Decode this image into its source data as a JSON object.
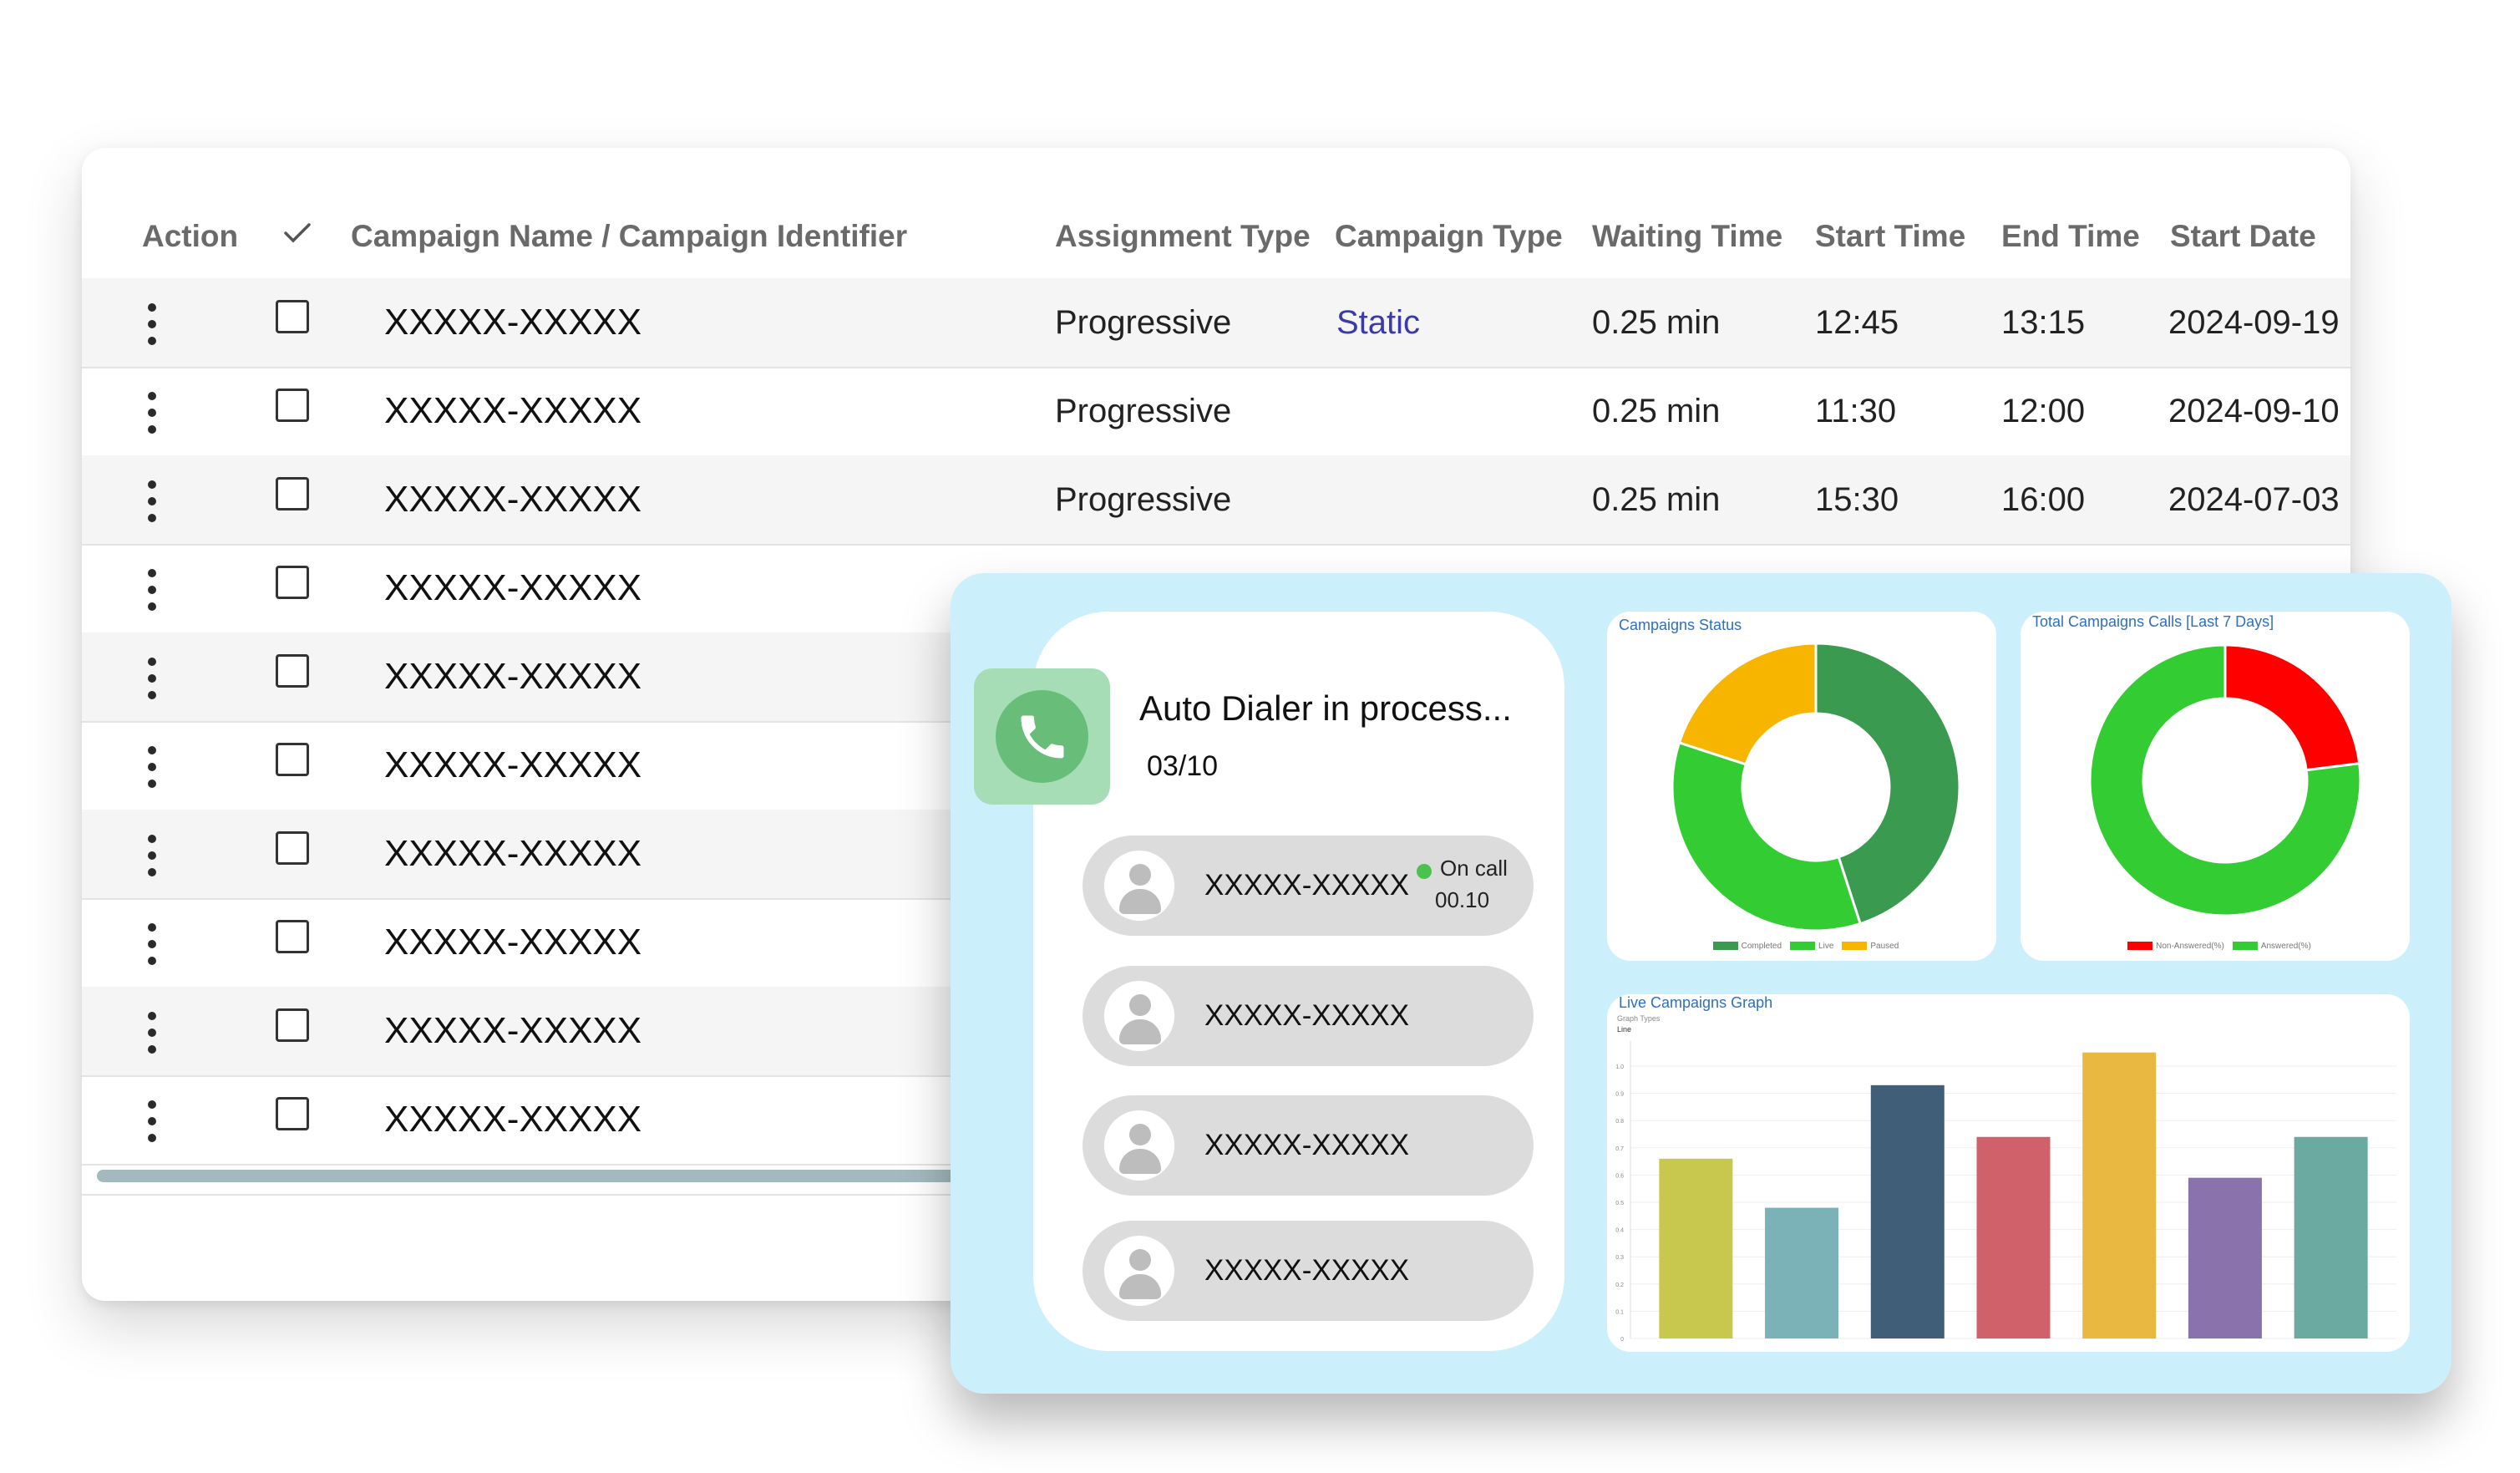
{
  "table": {
    "headers": {
      "action": "Action",
      "check_icon": "check-icon",
      "campaign": "Campaign Name / Campaign Identifier",
      "assignment": "Assignment Type",
      "campaign_type": "Campaign Type",
      "waiting": "Waiting Time",
      "start_time": "Start Time",
      "end_time": "End Time",
      "start_date": "Start Date"
    },
    "rows": [
      {
        "name": "XXXXX-XXXXX",
        "assignment": "Progressive",
        "campaign_type": "Static",
        "waiting": "0.25 min",
        "start_time": "12:45",
        "end_time": "13:15",
        "start_date": "2024-09-19"
      },
      {
        "name": "XXXXX-XXXXX",
        "assignment": "Progressive",
        "campaign_type": "",
        "waiting": "0.25 min",
        "start_time": "11:30",
        "end_time": "12:00",
        "start_date": "2024-09-10"
      },
      {
        "name": "XXXXX-XXXXX",
        "assignment": "Progressive",
        "campaign_type": "",
        "waiting": "0.25 min",
        "start_time": "15:30",
        "end_time": "16:00",
        "start_date": "2024-07-03"
      },
      {
        "name": "XXXXX-XXXXX"
      },
      {
        "name": "XXXXX-XXXXX"
      },
      {
        "name": "XXXXX-XXXXX"
      },
      {
        "name": "XXXXX-XXXXX"
      },
      {
        "name": "XXXXX-XXXXX"
      },
      {
        "name": "XXXXX-XXXXX"
      },
      {
        "name": "XXXXX-XXXXX"
      }
    ]
  },
  "dialer": {
    "title": "Auto Dialer in process...",
    "count": "03/10",
    "icon": "phone-icon",
    "calls": [
      {
        "name": "XXXXX-XXXXX",
        "status": "On call",
        "time": "00.10"
      },
      {
        "name": "XXXXX-XXXXX"
      },
      {
        "name": "XXXXX-XXXXX"
      },
      {
        "name": "XXXXX-XXXXX"
      }
    ]
  },
  "colors": {
    "panel_bg": "#cbeffb",
    "accent_link": "#3a3aa8",
    "completed": "#3a9a50",
    "live": "#33cc33",
    "paused": "#f7b500",
    "non_answered": "#ff0000",
    "answered": "#33cc33"
  },
  "chart_data": [
    {
      "type": "pie",
      "title": "Campaigns Status",
      "labels": [
        "Completed",
        "Live",
        "Paused"
      ],
      "values": [
        45,
        35,
        20
      ],
      "colors": [
        "#3a9a50",
        "#33cc33",
        "#f7b500"
      ],
      "legend": "bottom"
    },
    {
      "type": "pie",
      "title": "Total Campaigns Calls [Last 7 Days]",
      "labels": [
        "Non-Answered(%)",
        "Answered(%)"
      ],
      "values": [
        23,
        77
      ],
      "colors": [
        "#ff0000",
        "#33cc33"
      ],
      "legend": "bottom"
    },
    {
      "type": "bar",
      "title": "Live Campaigns Graph",
      "subtitle": "Graph Types",
      "selector": "Line",
      "categories": [
        "",
        "",
        "",
        "",
        "",
        "",
        "",
        ""
      ],
      "values": [
        0.66,
        0.48,
        0.93,
        0.74,
        1.05,
        0.59,
        0.74,
        0
      ],
      "colors": [
        "#c8c84f",
        "#7ab2b8",
        "#405e78",
        "#d0606a",
        "#e8b840",
        "#8a72ac",
        "#6aaaa0"
      ],
      "ylim": [
        0,
        1.0
      ],
      "yticks": [
        "0",
        "0.1",
        "0.2",
        "0.3",
        "0.4",
        "0.5",
        "0.6",
        "0.7",
        "0.8",
        "0.9",
        "1.0"
      ],
      "grid": true
    }
  ]
}
